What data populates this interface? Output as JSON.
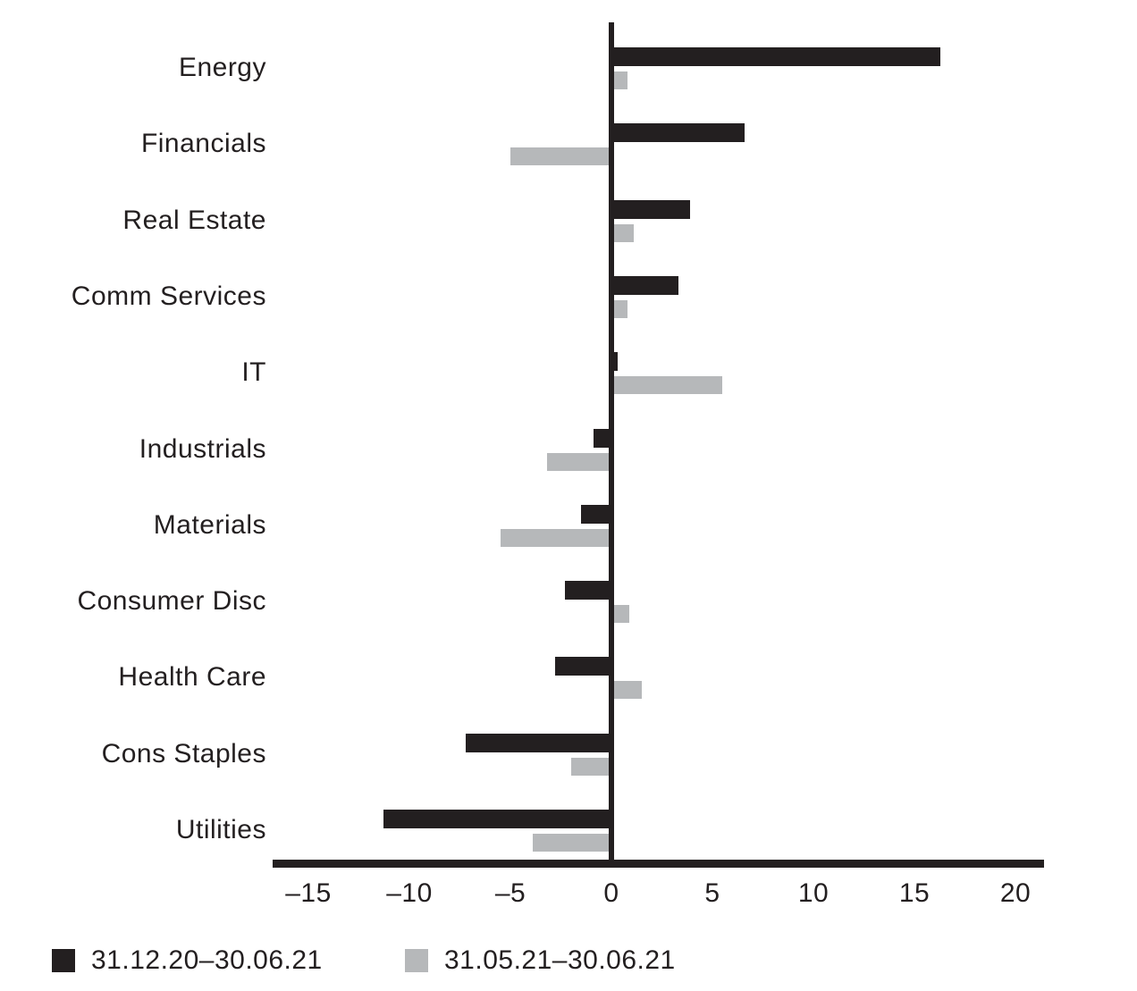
{
  "chart_data": {
    "type": "bar",
    "orientation": "horizontal",
    "title": "",
    "xlabel": "",
    "ylabel": "",
    "grid": false,
    "legend_position": "bottom",
    "xlim": [
      -16.8,
      21.4
    ],
    "x_ticks": [
      -15,
      -10,
      -5,
      0,
      5,
      10,
      15,
      20
    ],
    "categories": [
      "Energy",
      "Financials",
      "Real Estate",
      "Comm Services",
      "IT",
      "Industrials",
      "Materials",
      "Consumer Disc",
      "Health Care",
      "Cons Staples",
      "Utilities"
    ],
    "series": [
      {
        "name": "31.12.20–30.06.21",
        "color": "#231f20",
        "values": [
          16.3,
          6.6,
          3.9,
          3.3,
          0.3,
          -0.9,
          -1.5,
          -2.3,
          -2.8,
          -7.2,
          -11.3
        ]
      },
      {
        "name": "31.05.21–30.06.21",
        "color": "#b6b8ba",
        "values": [
          0.8,
          -5.0,
          1.1,
          0.8,
          5.5,
          -3.2,
          -5.5,
          0.9,
          1.5,
          -2.0,
          -3.9
        ]
      }
    ]
  },
  "colors": {
    "axis": "#231f20",
    "text": "#231f20",
    "background": "#ffffff"
  }
}
